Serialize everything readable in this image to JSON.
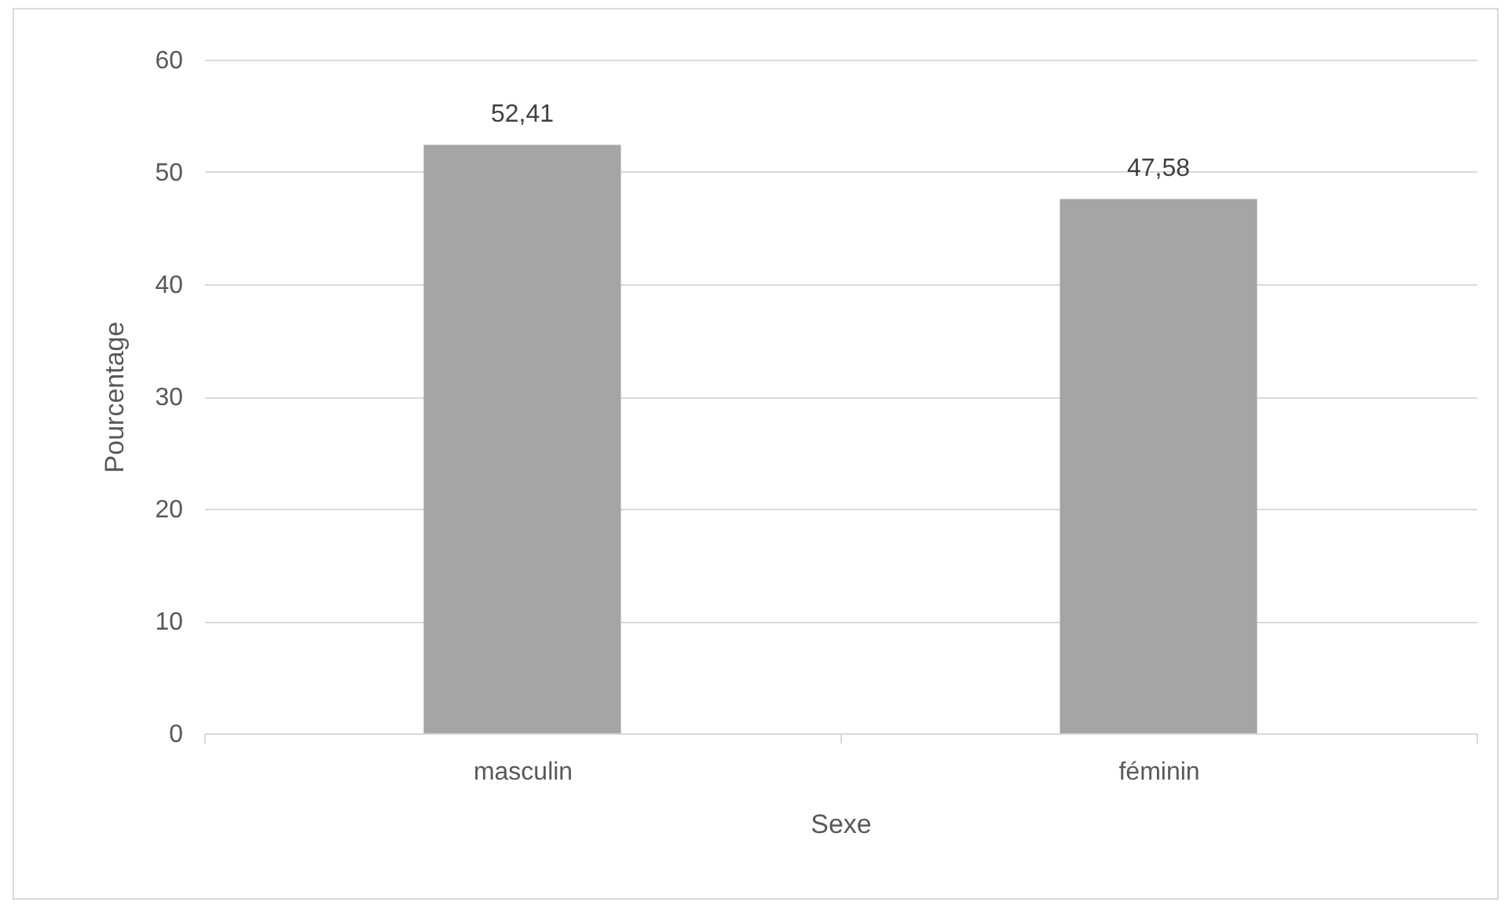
{
  "chart_data": {
    "type": "bar",
    "xlabel": "Sexe",
    "ylabel": "Pourcentage",
    "categories": [
      "masculin",
      "féminin"
    ],
    "values": [
      52.41,
      47.58
    ],
    "value_labels": [
      "52,41",
      "47,58"
    ],
    "color": "#a5a5a5",
    "ylim": [
      0,
      60
    ],
    "yticks": [
      0,
      10,
      20,
      30,
      40,
      50,
      60
    ],
    "grid": "y"
  }
}
